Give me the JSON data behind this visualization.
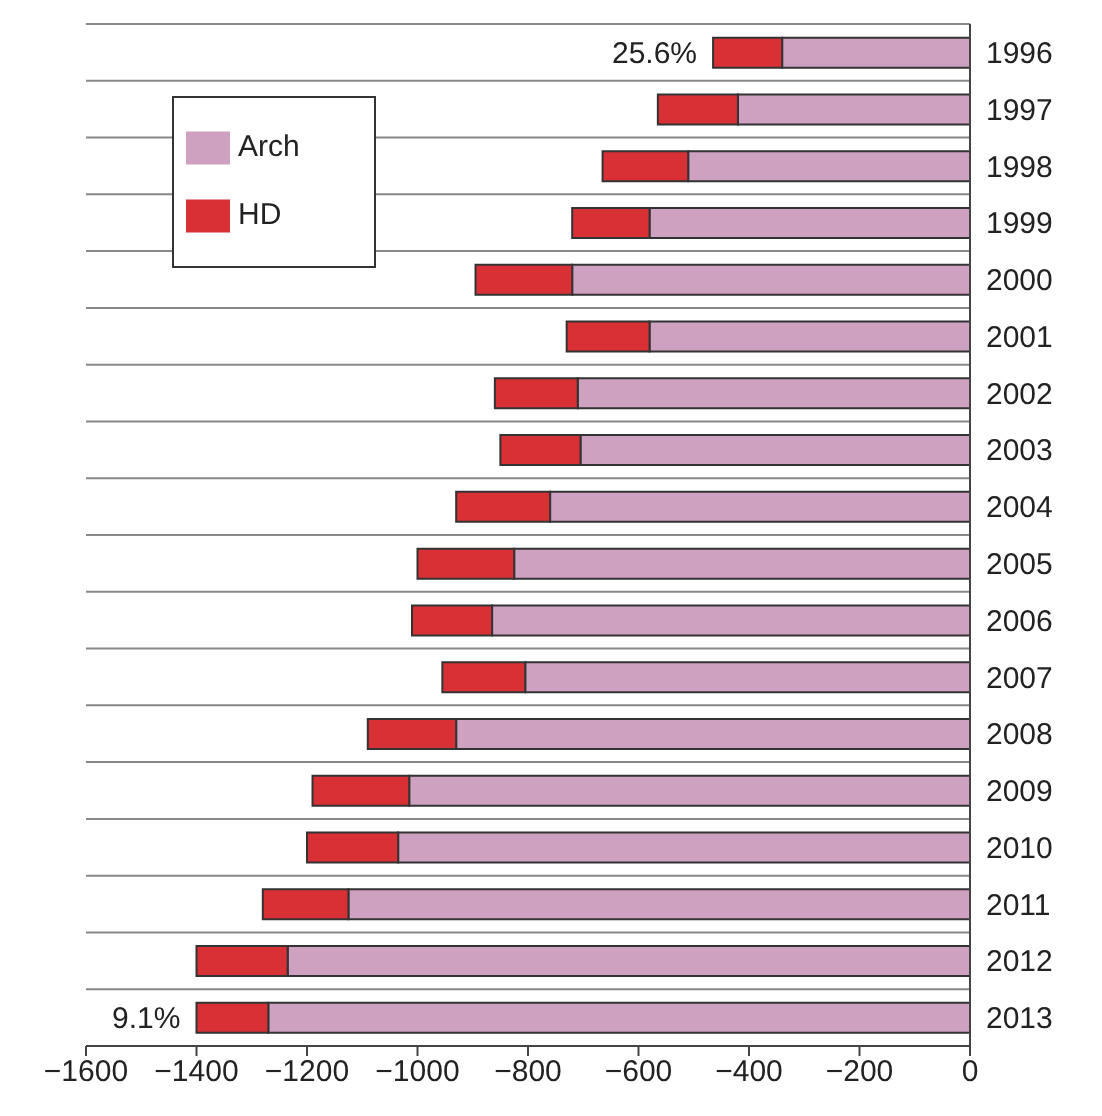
{
  "chart_data": {
    "type": "bar",
    "orientation": "horizontal",
    "stacked": true,
    "categories": [
      "1996",
      "1997",
      "1998",
      "1999",
      "2000",
      "2001",
      "2002",
      "2003",
      "2004",
      "2005",
      "2006",
      "2007",
      "2008",
      "2009",
      "2010",
      "2011",
      "2012",
      "2013"
    ],
    "series": [
      {
        "name": "Arch",
        "color": "#cfa1c1",
        "values": [
          -340,
          -420,
          -510,
          -580,
          -720,
          -580,
          -710,
          -705,
          -760,
          -825,
          -865,
          -805,
          -930,
          -1015,
          -1035,
          -1125,
          -1235,
          -1270
        ]
      },
      {
        "name": "HD",
        "color": "#d93036",
        "values": [
          -125,
          -145,
          -155,
          -140,
          -175,
          -150,
          -150,
          -145,
          -170,
          -175,
          -145,
          -150,
          -160,
          -175,
          -165,
          -155,
          -165,
          -130
        ]
      }
    ],
    "xlim": [
      -1600,
      0
    ],
    "xticks": [
      -1600,
      -1400,
      -1200,
      -1000,
      -800,
      -600,
      -400,
      -200,
      0
    ],
    "grid": "y",
    "legend": "top left",
    "annotations": [
      {
        "text": "25.6%",
        "x": -465,
        "y": "1996"
      },
      {
        "text": "9.1%",
        "x": -1400,
        "y": "2013"
      }
    ]
  }
}
